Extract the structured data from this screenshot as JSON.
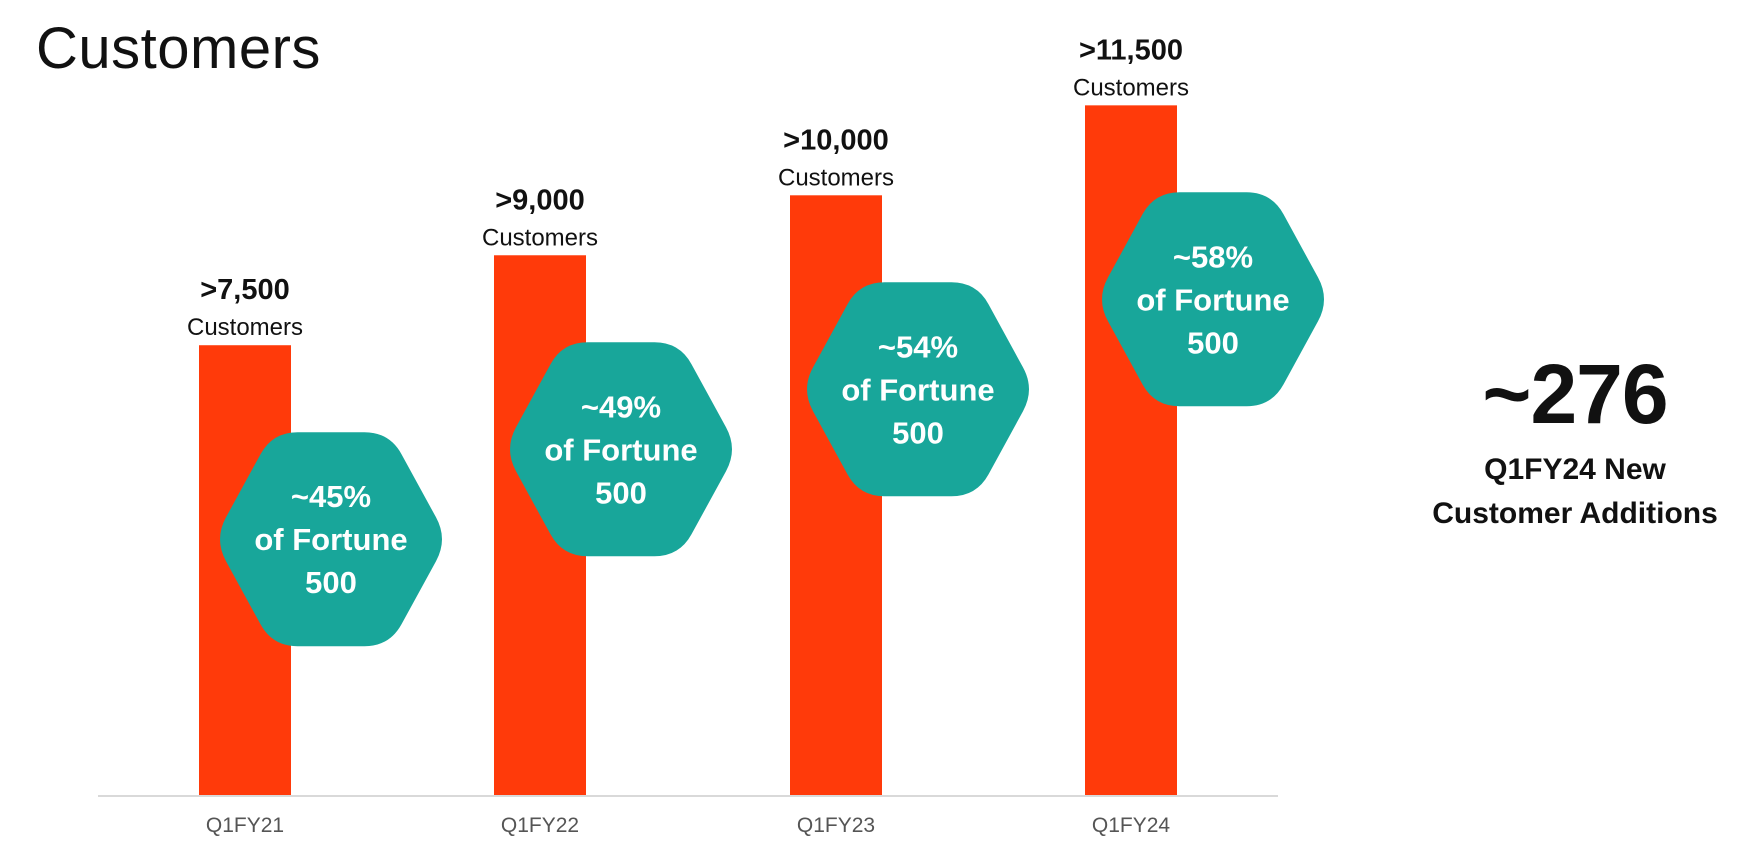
{
  "title": "Customers",
  "chart_data": {
    "type": "bar",
    "title": "Customers",
    "xlabel": "",
    "ylabel": "",
    "ylim": [
      0,
      13000
    ],
    "grid": false,
    "categories": [
      "Q1FY21",
      "Q1FY22",
      "Q1FY23",
      "Q1FY24"
    ],
    "values": [
      7500,
      9000,
      10000,
      11500
    ],
    "value_labels": [
      ">7,500",
      ">9,000",
      ">10,000",
      ">11,500"
    ],
    "value_sublabel": "Customers",
    "bar_color": "#ff3a0a",
    "annotations": [
      {
        "lines": [
          "~45%",
          "of Fortune",
          "500"
        ],
        "fortune500_pct": 45
      },
      {
        "lines": [
          "~49%",
          "of Fortune",
          "500"
        ],
        "fortune500_pct": 49
      },
      {
        "lines": [
          "~54%",
          "of Fortune",
          "500"
        ],
        "fortune500_pct": 54
      },
      {
        "lines": [
          "~58%",
          "of Fortune",
          "500"
        ],
        "fortune500_pct": 58
      }
    ],
    "annotation_color": "#18a69a"
  },
  "callout": {
    "value": "~276",
    "label_line1": "Q1FY24 New",
    "label_line2": "Customer Additions"
  }
}
